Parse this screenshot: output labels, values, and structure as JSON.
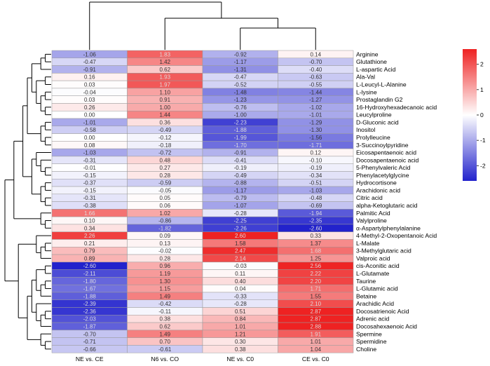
{
  "chart_data": {
    "type": "heatmap",
    "columns": [
      "NE vs. CE",
      "N6 vs. CO",
      "NE vs. C0",
      "CE vs. C0"
    ],
    "rows": [
      {
        "name": "Arginine",
        "values": [
          -1.06,
          1.83,
          -0.92,
          0.14
        ]
      },
      {
        "name": "Glutathione",
        "values": [
          -0.47,
          1.42,
          -1.17,
          -0.7
        ]
      },
      {
        "name": "L-aspartic Acid",
        "values": [
          -0.91,
          0.62,
          -1.31,
          -0.4
        ]
      },
      {
        "name": "Ala-Val",
        "values": [
          0.16,
          1.93,
          -0.47,
          -0.63
        ]
      },
      {
        "name": "L-Leucyl-L-Alanine",
        "values": [
          0.03,
          1.97,
          -0.52,
          -0.55
        ]
      },
      {
        "name": "L-lysine",
        "values": [
          -0.04,
          1.1,
          -1.48,
          -1.44
        ]
      },
      {
        "name": "Prostaglandin G2",
        "values": [
          0.03,
          0.91,
          -1.23,
          -1.27
        ]
      },
      {
        "name": "16-Hydroxyhexadecanoic acid",
        "values": [
          0.26,
          1.0,
          -0.76,
          -1.02
        ]
      },
      {
        "name": "Leucylproline",
        "values": [
          0.0,
          1.44,
          -1.0,
          -1.01
        ]
      },
      {
        "name": "D-Gluconic acid",
        "values": [
          -1.01,
          0.36,
          -2.23,
          -1.29
        ]
      },
      {
        "name": "Inositol",
        "values": [
          -0.58,
          -0.49,
          -1.88,
          -1.3
        ]
      },
      {
        "name": "Prolylleucine",
        "values": [
          0.0,
          -0.12,
          -1.99,
          -1.56
        ]
      },
      {
        "name": "3-Succinoylpyridine",
        "values": [
          0.08,
          -0.18,
          -1.7,
          -1.71
        ]
      },
      {
        "name": "Eicosapentaenoic acid",
        "values": [
          -1.03,
          -0.72,
          -0.91,
          0.12
        ]
      },
      {
        "name": "Docosapentaenoic acid",
        "values": [
          -0.31,
          0.48,
          -0.41,
          -0.1
        ]
      },
      {
        "name": "5-Phenylvaleric Acid",
        "values": [
          -0.01,
          0.27,
          -0.19,
          -0.19
        ]
      },
      {
        "name": "Phenylacetylglycine",
        "values": [
          -0.15,
          0.28,
          -0.49,
          -0.34
        ]
      },
      {
        "name": "Hydrocortisone",
        "values": [
          -0.37,
          -0.59,
          -0.88,
          -0.51
        ]
      },
      {
        "name": "Arachidonic acid",
        "values": [
          -0.15,
          -0.05,
          -1.17,
          -1.03
        ]
      },
      {
        "name": "Citric acid",
        "values": [
          -0.31,
          0.05,
          -0.79,
          -0.48
        ]
      },
      {
        "name": "alpha-Ketoglutaric acid",
        "values": [
          -0.38,
          0.06,
          -1.07,
          -0.69
        ]
      },
      {
        "name": "Palmitic Acid",
        "values": [
          1.66,
          1.02,
          -0.28,
          -1.94
        ]
      },
      {
        "name": "Valylproline",
        "values": [
          0.1,
          -0.86,
          -2.25,
          -2.35
        ]
      },
      {
        "name": "α-Aspartylphenylalanine",
        "values": [
          0.34,
          -1.82,
          -2.26,
          -2.6
        ]
      },
      {
        "name": "4-Methyl-2-Oxopentanoic Acid",
        "values": [
          2.26,
          0.09,
          2.6,
          0.33
        ]
      },
      {
        "name": "L-Malate",
        "values": [
          0.21,
          0.13,
          1.58,
          1.37
        ]
      },
      {
        "name": "3-Methylglutaric acid",
        "values": [
          0.79,
          -0.02,
          2.47,
          1.68
        ]
      },
      {
        "name": "Valproic acid",
        "values": [
          0.89,
          0.28,
          2.14,
          1.25
        ]
      },
      {
        "name": "cis-Aconitic acid",
        "values": [
          -2.6,
          0.96,
          -0.03,
          2.56
        ]
      },
      {
        "name": "L-Glutamate",
        "values": [
          -2.11,
          1.19,
          0.11,
          2.22
        ]
      },
      {
        "name": "Taurine",
        "values": [
          -1.8,
          1.3,
          0.4,
          2.2
        ]
      },
      {
        "name": "L-Glutamic acid",
        "values": [
          -1.67,
          1.15,
          0.04,
          1.71
        ]
      },
      {
        "name": "Betaine",
        "values": [
          -1.88,
          1.49,
          -0.33,
          1.55
        ]
      },
      {
        "name": "Arachidic Acid",
        "values": [
          -2.39,
          -0.42,
          -0.28,
          2.1
        ]
      },
      {
        "name": "Docosatrienoic Acid",
        "values": [
          -2.36,
          -0.11,
          0.51,
          2.87
        ]
      },
      {
        "name": "Adrenic acid",
        "values": [
          -2.03,
          0.38,
          0.84,
          2.87
        ]
      },
      {
        "name": "Docosahexaenoic Acid",
        "values": [
          -1.87,
          0.62,
          1.01,
          2.88
        ]
      },
      {
        "name": "Spermine",
        "values": [
          -0.7,
          1.49,
          1.21,
          1.91
        ]
      },
      {
        "name": "Spermidine",
        "values": [
          -0.71,
          0.7,
          0.3,
          1.01
        ]
      },
      {
        "name": "Choline",
        "values": [
          -0.66,
          -0.61,
          0.38,
          1.04
        ]
      }
    ],
    "colorbar": {
      "ticks": [
        2,
        1,
        0,
        -1,
        -2
      ],
      "range": [
        -2.6,
        2.6
      ],
      "low_color": "#2222cc",
      "mid_color": "#ffffff",
      "high_color": "#ee2222"
    }
  }
}
